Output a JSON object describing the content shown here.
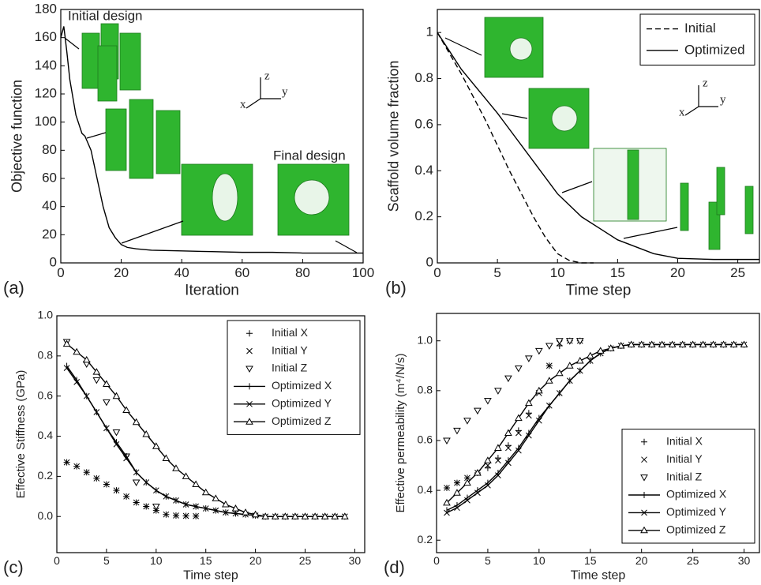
{
  "chart_data": [
    {
      "type": "line",
      "label": "(a)",
      "x_label": "Iteration",
      "y_label": "Objective function",
      "annotations": [
        "Initial design",
        "Final design",
        "z",
        "x",
        "y"
      ],
      "xlim": [
        0,
        100
      ],
      "ylim": [
        0,
        180
      ],
      "xticks": [
        0,
        20,
        40,
        60,
        80,
        100
      ],
      "yticks": [
        0,
        20,
        40,
        60,
        80,
        100,
        120,
        140,
        160,
        180
      ],
      "x": [
        0,
        1,
        2,
        3,
        5,
        7,
        8,
        10,
        12,
        14,
        16,
        18,
        20,
        22,
        25,
        30,
        40,
        50,
        60,
        70,
        80,
        90,
        100
      ],
      "series": [
        {
          "color": "#000000",
          "values": [
            160,
            168,
            150,
            130,
            105,
            92,
            90,
            80,
            60,
            40,
            25,
            18,
            13,
            11,
            10,
            9,
            8.5,
            8,
            7.5,
            7.5,
            7,
            7,
            7
          ]
        }
      ]
    },
    {
      "type": "line",
      "label": "(b)",
      "x_label": "Time step",
      "y_label": "Scaffold volume fraction",
      "annotations": [
        "z",
        "x",
        "y"
      ],
      "legend": "upper right",
      "xlim": [
        0,
        26.8
      ],
      "ylim": [
        0,
        1.1
      ],
      "xticks": [
        0,
        5,
        10,
        15,
        20,
        25
      ],
      "yticks": [
        0,
        0.2,
        0.4,
        0.6,
        0.8,
        1
      ],
      "series": [
        {
          "name": "Initial",
          "color": "#000000",
          "dash": true,
          "x": [
            0,
            2,
            4,
            6,
            8,
            9,
            10,
            11,
            12,
            13
          ],
          "values": [
            1,
            0.82,
            0.62,
            0.4,
            0.2,
            0.11,
            0.04,
            0.01,
            0,
            0
          ]
        },
        {
          "name": "Optimized",
          "color": "#000000",
          "x": [
            0,
            2,
            5,
            8,
            10,
            12,
            15,
            18,
            20,
            23,
            26.8
          ],
          "values": [
            1,
            0.84,
            0.65,
            0.44,
            0.3,
            0.2,
            0.1,
            0.04,
            0.02,
            0.015,
            0.015
          ]
        }
      ]
    },
    {
      "type": "line",
      "label": "(c)",
      "x_label": "Time step",
      "y_label": "Effective Stiffness (GPa)",
      "legend": "upper right",
      "xlim": [
        0,
        31
      ],
      "ylim": [
        -0.18,
        1.0
      ],
      "xticks": [
        0,
        5,
        10,
        15,
        20,
        25,
        30
      ],
      "yticks": [
        {
          "value": 0,
          "label": "0.0"
        },
        0.2,
        0.4,
        0.6,
        0.8,
        {
          "value": 1,
          "label": "1.0"
        }
      ],
      "x": [
        1,
        2,
        3,
        4,
        5,
        6,
        7,
        8,
        9,
        10,
        11,
        12,
        13,
        14,
        15,
        16,
        17,
        18,
        19,
        20,
        21,
        22,
        23,
        24,
        25,
        26,
        27,
        28,
        29
      ],
      "series": [
        {
          "name": "Initial X",
          "color": "#000000",
          "line": false,
          "marker": "plus",
          "values": [
            0.27,
            0.25,
            0.22,
            0.19,
            0.16,
            0.13,
            0.1,
            0.07,
            0.05,
            0.03,
            0.01,
            0.005,
            0.003,
            0.002,
            null,
            null,
            null,
            null,
            null,
            null,
            null,
            null,
            null,
            null,
            null,
            null,
            null,
            null,
            null
          ]
        },
        {
          "name": "Initial Y",
          "color": "#000000",
          "line": false,
          "marker": "x",
          "values": [
            0.27,
            0.25,
            0.22,
            0.19,
            0.16,
            0.13,
            0.1,
            0.07,
            0.05,
            0.03,
            0.01,
            0.005,
            0.003,
            0.002,
            null,
            null,
            null,
            null,
            null,
            null,
            null,
            null,
            null,
            null,
            null,
            null,
            null,
            null,
            null
          ]
        },
        {
          "name": "Initial Z",
          "color": "#000000",
          "line": false,
          "marker": "tri-down",
          "values": [
            0.87,
            null,
            0.76,
            0.68,
            0.57,
            0.42,
            0.3,
            0.17,
            null,
            0.05,
            null,
            null,
            null,
            null,
            null,
            null,
            null,
            null,
            null,
            null,
            null,
            null,
            null,
            null,
            null,
            null,
            null,
            null,
            null
          ]
        },
        {
          "name": "Optimized X",
          "color": "#000000",
          "line": true,
          "marker": "vbar",
          "values": [
            0.75,
            0.68,
            0.6,
            0.52,
            0.44,
            0.37,
            0.3,
            0.22,
            0.17,
            0.13,
            0.1,
            0.08,
            0.06,
            0.05,
            0.04,
            0.03,
            0.02,
            0.015,
            0.01,
            0.005,
            0,
            0,
            0,
            0,
            0,
            0,
            0,
            0,
            0
          ]
        },
        {
          "name": "Optimized Y",
          "color": "#000000",
          "line": true,
          "marker": "x",
          "values": [
            0.74,
            0.67,
            0.6,
            0.52,
            0.44,
            0.36,
            0.29,
            0.22,
            0.17,
            0.13,
            0.1,
            0.08,
            0.06,
            0.05,
            0.04,
            0.03,
            0.02,
            0.015,
            0.01,
            0.005,
            0,
            0,
            0,
            0,
            0,
            0,
            0,
            0,
            0
          ]
        },
        {
          "name": "Optimized Z",
          "color": "#000000",
          "line": true,
          "marker": "tri-up",
          "values": [
            0.86,
            0.82,
            0.78,
            0.72,
            0.66,
            0.6,
            0.53,
            0.47,
            0.41,
            0.35,
            0.29,
            0.24,
            0.2,
            0.16,
            0.12,
            0.09,
            0.06,
            0.04,
            0.02,
            0.01,
            0,
            0,
            0,
            0,
            0,
            0,
            0,
            0,
            0
          ]
        }
      ]
    },
    {
      "type": "line",
      "label": "(d)",
      "x_label": "Time step",
      "y_label": "Effective permeability (m⁴/N/s)",
      "legend": "lower right",
      "xlim": [
        0,
        31.5
      ],
      "ylim": [
        0.15,
        1.11
      ],
      "xticks": [
        0,
        5,
        10,
        15,
        20,
        25,
        30
      ],
      "yticks": [
        0.2,
        0.4,
        0.6,
        0.8,
        {
          "value": 1,
          "label": "1.0"
        }
      ],
      "x": [
        1,
        2,
        3,
        4,
        5,
        6,
        7,
        8,
        9,
        10,
        11,
        12,
        13,
        14,
        15,
        16,
        17,
        18,
        19,
        20,
        21,
        22,
        23,
        24,
        25,
        26,
        27,
        28,
        29,
        30
      ],
      "series": [
        {
          "name": "Initial X",
          "color": "#000000",
          "line": false,
          "marker": "plus",
          "values": [
            0.41,
            0.43,
            0.45,
            0.47,
            0.49,
            0.53,
            0.58,
            0.64,
            0.71,
            0.8,
            0.9,
            0.98,
            1,
            1,
            null,
            null,
            null,
            null,
            null,
            null,
            null,
            null,
            null,
            null,
            null,
            null,
            null,
            null,
            null,
            null
          ]
        },
        {
          "name": "Initial Y",
          "color": "#000000",
          "line": false,
          "marker": "x",
          "values": [
            0.41,
            0.43,
            0.45,
            0.47,
            0.5,
            0.52,
            0.57,
            0.63,
            0.7,
            0.79,
            0.9,
            0.99,
            1,
            1,
            null,
            null,
            null,
            null,
            null,
            null,
            null,
            null,
            null,
            null,
            null,
            null,
            null,
            null,
            null,
            null
          ]
        },
        {
          "name": "Initial Z",
          "color": "#000000",
          "line": false,
          "marker": "tri-down",
          "values": [
            0.6,
            0.64,
            0.68,
            0.72,
            0.76,
            0.8,
            0.85,
            0.89,
            0.93,
            0.96,
            0.98,
            1,
            1,
            1,
            null,
            null,
            null,
            null,
            null,
            null,
            null,
            null,
            null,
            null,
            null,
            null,
            null,
            null,
            null,
            null
          ]
        },
        {
          "name": "Optimized X",
          "color": "#000000",
          "line": true,
          "marker": "vbar",
          "values": [
            0.32,
            0.34,
            0.37,
            0.4,
            0.43,
            0.47,
            0.52,
            0.57,
            0.63,
            0.69,
            0.74,
            0.79,
            0.84,
            0.88,
            0.92,
            0.95,
            0.97,
            0.98,
            0.985,
            0.985,
            0.985,
            0.985,
            0.985,
            0.985,
            0.985,
            0.985,
            0.985,
            0.985,
            0.985,
            0.985
          ]
        },
        {
          "name": "Optimized Y",
          "color": "#000000",
          "line": true,
          "marker": "x",
          "values": [
            0.31,
            0.33,
            0.36,
            0.39,
            0.42,
            0.46,
            0.51,
            0.56,
            0.62,
            0.68,
            0.74,
            0.79,
            0.84,
            0.88,
            0.92,
            0.95,
            0.97,
            0.98,
            0.985,
            0.985,
            0.985,
            0.985,
            0.985,
            0.985,
            0.985,
            0.985,
            0.985,
            0.985,
            0.985,
            0.985
          ]
        },
        {
          "name": "Optimized Z",
          "color": "#000000",
          "line": true,
          "marker": "tri-up",
          "values": [
            0.35,
            0.39,
            0.43,
            0.47,
            0.52,
            0.57,
            0.63,
            0.69,
            0.75,
            0.8,
            0.84,
            0.87,
            0.9,
            0.92,
            0.94,
            0.96,
            0.97,
            0.98,
            0.985,
            0.985,
            0.985,
            0.985,
            0.985,
            0.985,
            0.985,
            0.985,
            0.985,
            0.985,
            0.985,
            0.985
          ]
        }
      ]
    }
  ]
}
